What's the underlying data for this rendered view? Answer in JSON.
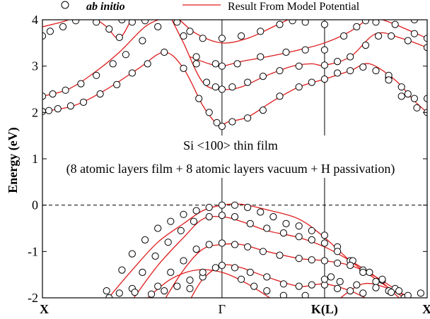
{
  "chart_data": {
    "type": "line",
    "title": "",
    "xlabel": "",
    "ylabel": "Energy (eV)",
    "ylim": [
      -2,
      4
    ],
    "xlim": [
      0,
      3
    ],
    "yticks": [
      -2,
      -1,
      0,
      1,
      2,
      3,
      4
    ],
    "ytick_labels": [
      "-2",
      "-1",
      "0",
      "1",
      "2",
      "3",
      "4"
    ],
    "xticks": [
      {
        "label": "X",
        "x": 0
      },
      {
        "label": "Γ",
        "x": 1.4
      },
      {
        "label": "K(L)",
        "x": 2.2
      },
      {
        "label": "X",
        "x": 3
      }
    ],
    "fermi_level": 0,
    "legend": {
      "placement": "top",
      "entries": [
        {
          "name": "ab initio",
          "marker": "circle"
        },
        {
          "name": "Result From Model Potential",
          "marker": "line"
        }
      ]
    },
    "annotations": [
      "Si <100> thin film",
      "(8 atomic layers film + 8 atomic layers vacuum + H passivation)"
    ],
    "colors": {
      "model_line": "#dd1c1c",
      "points": "#000000",
      "axis": "#000000"
    },
    "series": [
      {
        "role": "model",
        "points": [
          [
            0.0,
            2.02
          ],
          [
            0.25,
            2.15
          ],
          [
            0.5,
            2.5
          ],
          [
            0.75,
            2.95
          ],
          [
            0.95,
            3.3
          ],
          [
            1.1,
            2.95
          ],
          [
            1.25,
            2.15
          ],
          [
            1.35,
            1.78
          ],
          [
            1.4,
            1.72
          ],
          [
            1.45,
            1.8
          ],
          [
            1.6,
            1.9
          ],
          [
            1.8,
            2.25
          ],
          [
            2.0,
            2.55
          ],
          [
            2.2,
            2.72
          ],
          [
            2.4,
            2.9
          ],
          [
            2.55,
            3.05
          ],
          [
            2.75,
            2.7
          ],
          [
            2.9,
            2.25
          ],
          [
            3.0,
            2.0
          ]
        ]
      },
      {
        "role": "model",
        "points": [
          [
            0.0,
            2.35
          ],
          [
            0.2,
            2.5
          ],
          [
            0.4,
            2.85
          ],
          [
            0.6,
            3.3
          ],
          [
            0.8,
            3.85
          ],
          [
            0.95,
            4.05
          ]
        ]
      },
      {
        "role": "model",
        "points": [
          [
            1.0,
            4.05
          ],
          [
            1.1,
            3.5
          ],
          [
            1.25,
            2.65
          ],
          [
            1.4,
            2.5
          ],
          [
            1.55,
            2.55
          ],
          [
            1.75,
            2.8
          ],
          [
            1.95,
            3.0
          ],
          [
            2.1,
            3.05
          ],
          [
            2.2,
            3.02
          ],
          [
            2.4,
            3.2
          ],
          [
            2.6,
            3.7
          ],
          [
            2.8,
            3.6
          ],
          [
            3.0,
            3.4
          ]
        ]
      },
      {
        "role": "model",
        "points": [
          [
            0.0,
            3.85
          ],
          [
            0.15,
            3.95
          ],
          [
            0.25,
            4.05
          ]
        ]
      },
      {
        "role": "model",
        "points": [
          [
            0.4,
            4.05
          ],
          [
            0.5,
            3.85
          ],
          [
            0.6,
            3.6
          ],
          [
            0.7,
            4.05
          ]
        ]
      },
      {
        "role": "model",
        "points": [
          [
            1.05,
            4.05
          ],
          [
            1.2,
            3.7
          ],
          [
            1.4,
            3.5
          ],
          [
            1.6,
            3.6
          ],
          [
            1.8,
            3.85
          ],
          [
            1.95,
            4.05
          ]
        ]
      },
      {
        "role": "model",
        "points": [
          [
            1.15,
            3.2
          ],
          [
            1.3,
            3.05
          ],
          [
            1.4,
            3.0
          ],
          [
            1.55,
            3.1
          ],
          [
            1.75,
            3.2
          ],
          [
            2.0,
            3.35
          ],
          [
            2.2,
            3.5
          ],
          [
            2.4,
            3.75
          ],
          [
            2.55,
            4.05
          ]
        ]
      },
      {
        "role": "model",
        "points": [
          [
            2.6,
            4.05
          ],
          [
            2.75,
            3.9
          ],
          [
            3.0,
            3.6
          ]
        ]
      },
      {
        "role": "model",
        "points": [
          [
            0.5,
            -2.05
          ],
          [
            0.7,
            -1.4
          ],
          [
            0.9,
            -0.8
          ],
          [
            1.1,
            -0.4
          ],
          [
            1.25,
            -0.12
          ],
          [
            1.4,
            0.0
          ],
          [
            1.55,
            0.02
          ],
          [
            1.75,
            -0.1
          ],
          [
            2.0,
            -0.3
          ],
          [
            2.2,
            -0.7
          ],
          [
            2.4,
            -1.2
          ],
          [
            2.6,
            -1.6
          ],
          [
            2.85,
            -2.05
          ]
        ]
      },
      {
        "role": "model",
        "points": [
          [
            0.7,
            -2.05
          ],
          [
            0.9,
            -1.3
          ],
          [
            1.1,
            -0.7
          ],
          [
            1.25,
            -0.3
          ],
          [
            1.4,
            -0.25
          ],
          [
            1.55,
            -0.35
          ],
          [
            1.75,
            -0.55
          ],
          [
            2.0,
            -0.7
          ],
          [
            2.2,
            -0.9
          ],
          [
            2.4,
            -1.2
          ],
          [
            2.6,
            -1.55
          ],
          [
            2.8,
            -2.05
          ]
        ]
      },
      {
        "role": "model",
        "points": [
          [
            0.95,
            -2.05
          ],
          [
            1.1,
            -1.4
          ],
          [
            1.25,
            -0.95
          ],
          [
            1.4,
            -0.85
          ],
          [
            1.55,
            -0.85
          ],
          [
            1.75,
            -1.0
          ],
          [
            2.0,
            -1.15
          ],
          [
            2.2,
            -1.2
          ],
          [
            2.4,
            -1.3
          ],
          [
            2.6,
            -1.55
          ],
          [
            2.8,
            -1.9
          ],
          [
            2.9,
            -2.05
          ]
        ]
      },
      {
        "role": "model",
        "points": [
          [
            1.15,
            -2.05
          ],
          [
            1.25,
            -1.6
          ],
          [
            1.4,
            -1.3
          ],
          [
            1.55,
            -1.35
          ],
          [
            1.75,
            -1.55
          ],
          [
            2.0,
            -1.75
          ],
          [
            2.2,
            -1.7
          ],
          [
            2.4,
            -1.85
          ],
          [
            2.55,
            -2.05
          ]
        ]
      },
      {
        "role": "model",
        "points": [
          [
            0.8,
            -2.05
          ],
          [
            1.0,
            -1.6
          ],
          [
            1.2,
            -1.4
          ],
          [
            1.4,
            -1.45
          ],
          [
            1.6,
            -1.7
          ],
          [
            1.8,
            -2.05
          ]
        ]
      },
      {
        "role": "model",
        "points": [
          [
            2.3,
            -2.05
          ],
          [
            2.5,
            -1.7
          ],
          [
            2.7,
            -1.8
          ],
          [
            2.9,
            -2.05
          ]
        ]
      }
    ],
    "ab_initio_points": [
      [
        0.0,
        2.02
      ],
      [
        0.05,
        2.04
      ],
      [
        0.12,
        2.08
      ],
      [
        0.22,
        2.14
      ],
      [
        0.32,
        2.22
      ],
      [
        0.45,
        2.4
      ],
      [
        0.58,
        2.6
      ],
      [
        0.7,
        2.85
      ],
      [
        0.82,
        3.05
      ],
      [
        0.95,
        3.3
      ],
      [
        1.1,
        2.95
      ],
      [
        1.22,
        2.3
      ],
      [
        1.3,
        2.0
      ],
      [
        1.36,
        1.78
      ],
      [
        1.4,
        1.7
      ],
      [
        1.48,
        1.8
      ],
      [
        1.6,
        1.88
      ],
      [
        1.72,
        2.05
      ],
      [
        1.85,
        2.35
      ],
      [
        2.0,
        2.55
      ],
      [
        2.1,
        2.65
      ],
      [
        2.2,
        2.72
      ],
      [
        2.3,
        2.85
      ],
      [
        2.4,
        2.9
      ],
      [
        2.5,
        2.98
      ],
      [
        2.6,
        2.9
      ],
      [
        2.7,
        2.75
      ],
      [
        2.8,
        2.55
      ],
      [
        2.9,
        2.3
      ],
      [
        3.0,
        2.0
      ],
      [
        0.0,
        2.35
      ],
      [
        0.08,
        2.4
      ],
      [
        0.18,
        2.48
      ],
      [
        0.3,
        2.62
      ],
      [
        0.42,
        2.8
      ],
      [
        0.55,
        3.05
      ],
      [
        0.65,
        3.25
      ],
      [
        0.78,
        3.55
      ],
      [
        0.9,
        3.85
      ],
      [
        1.1,
        3.65
      ],
      [
        1.2,
        3.05
      ],
      [
        1.28,
        2.65
      ],
      [
        1.35,
        2.55
      ],
      [
        1.4,
        2.5
      ],
      [
        1.48,
        2.55
      ],
      [
        1.6,
        2.65
      ],
      [
        1.72,
        2.78
      ],
      [
        1.85,
        2.9
      ],
      [
        2.0,
        3.0
      ],
      [
        2.2,
        3.02
      ],
      [
        2.3,
        3.1
      ],
      [
        2.4,
        3.2
      ],
      [
        2.52,
        3.45
      ],
      [
        2.62,
        3.65
      ],
      [
        2.72,
        3.65
      ],
      [
        2.85,
        3.55
      ],
      [
        3.0,
        3.4
      ],
      [
        0.0,
        3.65
      ],
      [
        0.06,
        3.75
      ],
      [
        0.16,
        3.85
      ],
      [
        0.26,
        3.98
      ],
      [
        0.42,
        3.95
      ],
      [
        0.52,
        3.8
      ],
      [
        0.6,
        3.62
      ],
      [
        0.7,
        3.95
      ],
      [
        1.15,
        3.75
      ],
      [
        1.25,
        3.6
      ],
      [
        1.4,
        3.6
      ],
      [
        1.55,
        3.65
      ],
      [
        1.7,
        3.75
      ],
      [
        1.85,
        3.9
      ],
      [
        2.05,
        3.95
      ],
      [
        2.2,
        3.9
      ],
      [
        1.2,
        3.2
      ],
      [
        1.35,
        3.05
      ],
      [
        1.4,
        3.0
      ],
      [
        1.52,
        3.05
      ],
      [
        1.7,
        3.2
      ],
      [
        1.9,
        3.3
      ],
      [
        2.05,
        3.35
      ],
      [
        2.2,
        3.35
      ],
      [
        2.35,
        3.65
      ],
      [
        2.45,
        3.85
      ],
      [
        2.6,
        3.95
      ],
      [
        2.75,
        3.9
      ],
      [
        2.9,
        3.7
      ],
      [
        3.0,
        3.6
      ],
      [
        0.62,
        4.0
      ],
      [
        0.8,
        3.98
      ],
      [
        1.05,
        3.95
      ],
      [
        1.95,
        3.98
      ],
      [
        2.52,
        3.98
      ],
      [
        2.9,
        4.0
      ],
      [
        2.7,
        2.8
      ],
      [
        2.7,
        2.7
      ],
      [
        2.8,
        2.35
      ],
      [
        2.85,
        2.4
      ],
      [
        2.92,
        2.1
      ],
      [
        3.0,
        2.3
      ],
      [
        0.52,
        -2.0
      ],
      [
        0.62,
        -1.4
      ],
      [
        0.7,
        -1.05
      ],
      [
        0.8,
        -0.75
      ],
      [
        0.9,
        -0.5
      ],
      [
        1.0,
        -0.35
      ],
      [
        1.1,
        -0.2
      ],
      [
        1.2,
        -0.12
      ],
      [
        1.3,
        -0.05
      ],
      [
        1.4,
        0.0
      ],
      [
        1.5,
        0.0
      ],
      [
        1.6,
        -0.05
      ],
      [
        1.7,
        -0.15
      ],
      [
        1.8,
        -0.25
      ],
      [
        1.9,
        -0.4
      ],
      [
        2.0,
        -0.45
      ],
      [
        2.1,
        -0.55
      ],
      [
        2.2,
        -0.65
      ],
      [
        2.3,
        -0.9
      ],
      [
        2.4,
        -1.2
      ],
      [
        2.5,
        -1.4
      ],
      [
        2.6,
        -1.65
      ],
      [
        2.7,
        -1.85
      ],
      [
        2.82,
        -2.0
      ],
      [
        0.7,
        -1.8
      ],
      [
        0.78,
        -1.45
      ],
      [
        0.88,
        -1.1
      ],
      [
        0.98,
        -0.8
      ],
      [
        1.08,
        -0.55
      ],
      [
        1.18,
        -0.35
      ],
      [
        1.3,
        -0.25
      ],
      [
        1.4,
        -0.22
      ],
      [
        1.5,
        -0.25
      ],
      [
        1.62,
        -0.4
      ],
      [
        1.75,
        -0.5
      ],
      [
        1.88,
        -0.6
      ],
      [
        2.0,
        -0.68
      ],
      [
        2.1,
        -0.75
      ],
      [
        2.2,
        -0.82
      ],
      [
        2.3,
        -1.0
      ],
      [
        2.42,
        -1.2
      ],
      [
        2.55,
        -1.45
      ],
      [
        2.65,
        -1.62
      ],
      [
        2.75,
        -1.8
      ],
      [
        0.9,
        -1.75
      ],
      [
        1.0,
        -1.45
      ],
      [
        1.1,
        -1.2
      ],
      [
        1.2,
        -0.95
      ],
      [
        1.3,
        -0.85
      ],
      [
        1.4,
        -0.82
      ],
      [
        1.5,
        -0.85
      ],
      [
        1.6,
        -0.9
      ],
      [
        1.72,
        -1.0
      ],
      [
        1.85,
        -1.08
      ],
      [
        2.0,
        -1.15
      ],
      [
        2.1,
        -1.18
      ],
      [
        2.2,
        -1.2
      ],
      [
        2.3,
        -1.25
      ],
      [
        2.4,
        -1.3
      ],
      [
        2.5,
        -1.45
      ],
      [
        2.65,
        -1.6
      ],
      [
        2.78,
        -1.85
      ],
      [
        1.15,
        -1.8
      ],
      [
        1.25,
        -1.55
      ],
      [
        1.35,
        -1.35
      ],
      [
        1.4,
        -1.3
      ],
      [
        1.5,
        -1.35
      ],
      [
        1.62,
        -1.45
      ],
      [
        1.75,
        -1.55
      ],
      [
        1.88,
        -1.7
      ],
      [
        2.0,
        -1.75
      ],
      [
        2.1,
        -1.72
      ],
      [
        2.2,
        -1.72
      ],
      [
        2.3,
        -1.8
      ],
      [
        2.4,
        -1.85
      ],
      [
        2.5,
        -1.9
      ],
      [
        0.5,
        -1.85
      ],
      [
        0.6,
        -1.9
      ],
      [
        0.72,
        -1.88
      ],
      [
        0.85,
        -1.92
      ],
      [
        0.95,
        -1.85
      ],
      [
        1.05,
        -1.75
      ],
      [
        1.15,
        -1.62
      ],
      [
        1.25,
        -1.45
      ],
      [
        1.55,
        -1.6
      ],
      [
        1.65,
        -1.75
      ],
      [
        1.75,
        -1.85
      ],
      [
        1.88,
        -1.95
      ],
      [
        2.05,
        -1.95
      ],
      [
        2.2,
        -1.6
      ],
      [
        2.25,
        -1.55
      ],
      [
        2.32,
        -1.65
      ],
      [
        2.45,
        -1.72
      ],
      [
        2.6,
        -1.78
      ],
      [
        2.72,
        -1.88
      ],
      [
        2.85,
        -1.95
      ],
      [
        2.95,
        -1.9
      ]
    ]
  }
}
